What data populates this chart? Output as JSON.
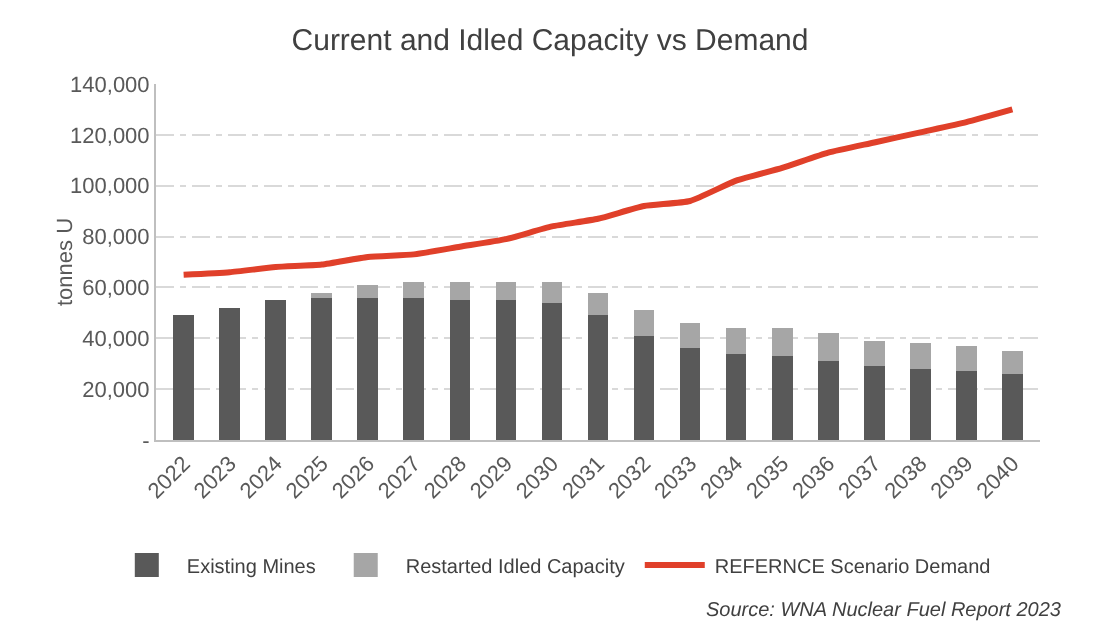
{
  "chart_data": {
    "type": "bar",
    "title": "Current and Idled Capacity vs Demand",
    "ylabel": "tonnes U",
    "stacked": true,
    "categories": [
      "2022",
      "2023",
      "2024",
      "2025",
      "2026",
      "2027",
      "2028",
      "2029",
      "2030",
      "2031",
      "2032",
      "2033",
      "2034",
      "2035",
      "2036",
      "2037",
      "2038",
      "2039",
      "2040"
    ],
    "series": [
      {
        "name": "Existing Mines",
        "color": "#595959",
        "values": [
          49000,
          52000,
          55000,
          56000,
          56000,
          56000,
          55000,
          55000,
          54000,
          49000,
          41000,
          36000,
          34000,
          33000,
          31000,
          29000,
          28000,
          27000,
          26000
        ]
      },
      {
        "name": "Restarted Idled Capacity",
        "color": "#a6a6a6",
        "values": [
          0,
          0,
          0,
          2000,
          5000,
          6000,
          7000,
          7000,
          8000,
          9000,
          10000,
          10000,
          10000,
          11000,
          11000,
          10000,
          10000,
          10000,
          9000
        ]
      },
      {
        "name": "REFERNCE Scenario Demand",
        "type": "line",
        "color": "#e0402a",
        "values": [
          65000,
          66000,
          68000,
          69000,
          72000,
          73000,
          76000,
          79000,
          84000,
          87000,
          92000,
          94000,
          102000,
          107000,
          113000,
          117000,
          121000,
          125000,
          130000
        ]
      }
    ],
    "ylim": [
      0,
      140000
    ],
    "yticks": [
      {
        "value": 0,
        "label": "-"
      },
      {
        "value": 20000,
        "label": "20,000"
      },
      {
        "value": 40000,
        "label": "40,000"
      },
      {
        "value": 60000,
        "label": "60,000"
      },
      {
        "value": 80000,
        "label": "80,000"
      },
      {
        "value": 100000,
        "label": "100,000"
      },
      {
        "value": 120000,
        "label": "120,000"
      },
      {
        "value": 140000,
        "label": "140,000"
      }
    ],
    "grid": "y",
    "legend": "bottom",
    "marker": "none",
    "line_style": "solid",
    "annotations": [
      "Source: WNA Nuclear Fuel Report 2023"
    ]
  }
}
